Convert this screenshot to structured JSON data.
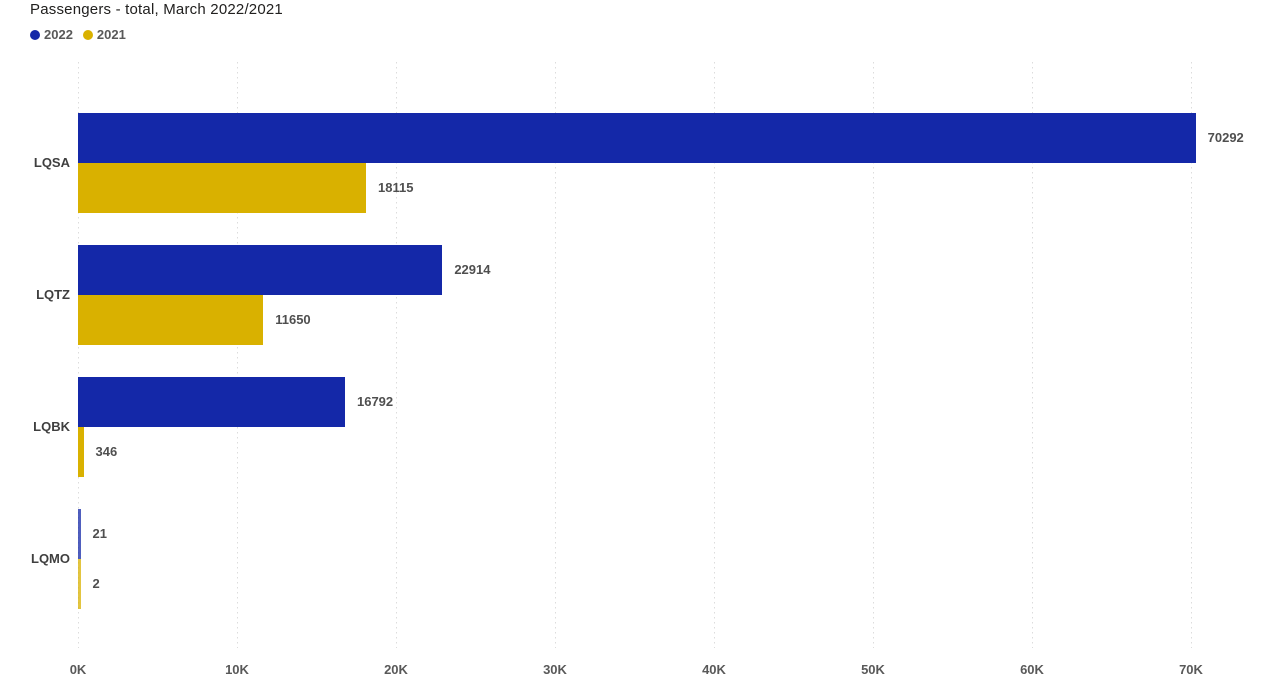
{
  "title": "Passengers - total, March 2022/2021",
  "chart_data": {
    "type": "bar",
    "orientation": "horizontal",
    "title": "Passengers - total, March 2022/2021",
    "xlabel": "",
    "ylabel": "",
    "categories": [
      "LQSA",
      "LQTZ",
      "LQBK",
      "LQMO"
    ],
    "series": [
      {
        "name": "2022",
        "color": "#1428a8",
        "values": [
          70292,
          22914,
          16792,
          21
        ]
      },
      {
        "name": "2021",
        "color": "#d9b100",
        "values": [
          18115,
          11650,
          346,
          2
        ]
      }
    ],
    "value_labels": [
      "70292",
      "22914",
      "16792",
      "21",
      "18115",
      "11650",
      "346",
      "2"
    ],
    "x_tick_labels": [
      "0K",
      "10K",
      "20K",
      "30K",
      "40K",
      "50K",
      "60K",
      "70K"
    ],
    "xlim": [
      0,
      74500
    ],
    "grid": "vertical-dotted",
    "gridline_color": "#dcdcdc",
    "legend_position": "top-left",
    "background_color": "#ffffff"
  }
}
